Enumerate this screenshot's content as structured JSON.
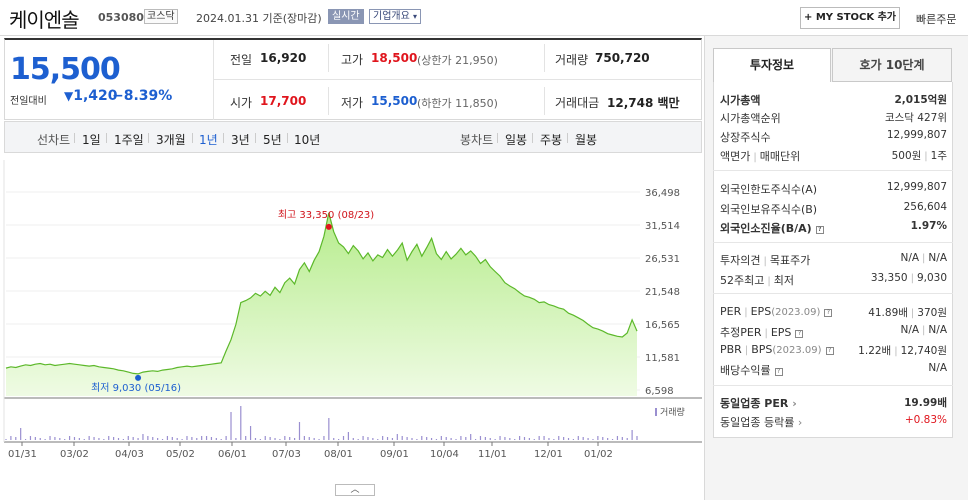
{
  "header": {
    "company": "케이엔솔",
    "code": "053080",
    "market": "코스닥",
    "date": "2024.01.31",
    "basis": "기준(장마감)",
    "realtime_label": "실시간",
    "overview_label": "기업개요",
    "mystock_label": "+ MY STOCK 추가",
    "quickorder_label": "빠른주문"
  },
  "price": {
    "current": "15,500",
    "change_label": "전일대비",
    "change_value": "1,420",
    "change_pct": "−8.39%",
    "prev_close_label": "전일",
    "prev_close": "16,920",
    "high_label": "고가",
    "high": "18,500",
    "upper_limit": "(상한가 21,950)",
    "volume_label": "거래량",
    "volume": "750,720",
    "open_label": "시가",
    "open": "17,700",
    "low_label": "저가",
    "low": "15,500",
    "lower_limit": "(하한가 11,850)",
    "amount_label": "거래대금",
    "amount": "12,748 백만"
  },
  "tabs": {
    "line_label": "선차트",
    "periods": [
      "1일",
      "1주일",
      "3개월",
      "1년",
      "3년",
      "5년",
      "10년"
    ],
    "selected_period": "1년",
    "candle_label": "봉차트",
    "candles": [
      "일봉",
      "주봉",
      "월봉"
    ]
  },
  "chart_data": {
    "type": "area",
    "x_ticks": [
      "01/31",
      "03/02",
      "04/03",
      "05/02",
      "06/01",
      "07/03",
      "08/01",
      "09/01",
      "10/04",
      "11/01",
      "12/01",
      "01/02"
    ],
    "y_ticks": [
      "36,498",
      "31,514",
      "26,531",
      "21,548",
      "16,565",
      "11,581",
      "6,598"
    ],
    "ylim": [
      6598,
      36498
    ],
    "high_annotation": "최고 33,350 (08/23)",
    "low_annotation": "최저 9,030 (05/16)",
    "volume_label": "거래량",
    "series": [
      {
        "values": [
          9900,
          10100,
          10000,
          10200,
          10400,
          10300,
          10500,
          10600,
          10400,
          10500,
          10300,
          10400,
          10500,
          10600,
          10500,
          10400,
          10300,
          10200,
          10300,
          10100,
          10000,
          9900,
          9800,
          9600,
          9500,
          9300,
          9100,
          9030,
          9300,
          9400,
          9500,
          9400,
          9600,
          9700,
          9800,
          10000,
          10100,
          10200,
          10100,
          10200,
          10300,
          10400,
          10500,
          10600,
          10700,
          12500,
          14200,
          16500,
          19800,
          20100,
          20500,
          21200,
          20800,
          21500,
          20900,
          22100,
          21300,
          22800,
          23500,
          22600,
          24800,
          25800,
          24500,
          26200,
          27500,
          29800,
          33350,
          30500,
          28800,
          28200,
          27200,
          28400,
          27600,
          26400,
          27300,
          26100,
          27000,
          26600,
          27800,
          26800,
          27700,
          28800,
          26200,
          27500,
          28600,
          26800,
          28100,
          29500,
          27200,
          26300,
          27500,
          26400,
          27100,
          28000,
          27000,
          27600,
          26800,
          25700,
          26300,
          25200,
          24500,
          23800,
          22800,
          22300,
          21900,
          21300,
          20800,
          20600,
          20300,
          19800,
          19900,
          19500,
          19300,
          19000,
          18800,
          18200,
          17900,
          17500,
          17100,
          16500,
          16000,
          15800,
          15500,
          15100,
          14900,
          14700,
          14600,
          15200,
          17200,
          15500
        ]
      }
    ]
  },
  "right_panel": {
    "tab_active": "투자정보",
    "tab_inactive": "호가 10단계",
    "rows": [
      {
        "label": "시가총액",
        "value": "2,015억원",
        "bold": true
      },
      {
        "label": "시가총액순위",
        "value": "코스닥 427위"
      },
      {
        "label": "상장주식수",
        "value": "12,999,807"
      },
      {
        "label": "액면가",
        "label2": "매매단위",
        "value": "500원",
        "value2": "1주"
      },
      {
        "label": "외국인한도주식수(A)",
        "value": "12,999,807"
      },
      {
        "label": "외국인보유주식수(B)",
        "value": "256,604"
      },
      {
        "label": "외국인소진율(B/A)",
        "value": "1.97%",
        "bold": true
      },
      {
        "label": "투자의견",
        "label2": "목표주가",
        "value": "N/A",
        "value2": "N/A"
      },
      {
        "label": "52주최고",
        "label2": "최저",
        "value": "33,350",
        "value2": "9,030"
      },
      {
        "label": "PER",
        "label2": "EPS",
        "label2_sub": "(2023.09)",
        "value": "41.89배",
        "value2": "370원"
      },
      {
        "label": "추정PER",
        "label2": "EPS",
        "value": "N/A",
        "value2": "N/A"
      },
      {
        "label": "PBR",
        "label2": "BPS",
        "label2_sub": "(2023.09)",
        "value": "1.22배",
        "value2": "12,740원"
      },
      {
        "label": "배당수익률",
        "value": "N/A"
      },
      {
        "label": "동일업종 PER",
        "value": "19.99배",
        "bold": true
      },
      {
        "label": "동일업종 등락률",
        "value": "+0.83%",
        "red": true
      }
    ]
  },
  "colors": {
    "blue": "#1d5fd0",
    "red": "#e0151d",
    "area_fill": "#c8f0a8",
    "line": "#5cb82a"
  }
}
